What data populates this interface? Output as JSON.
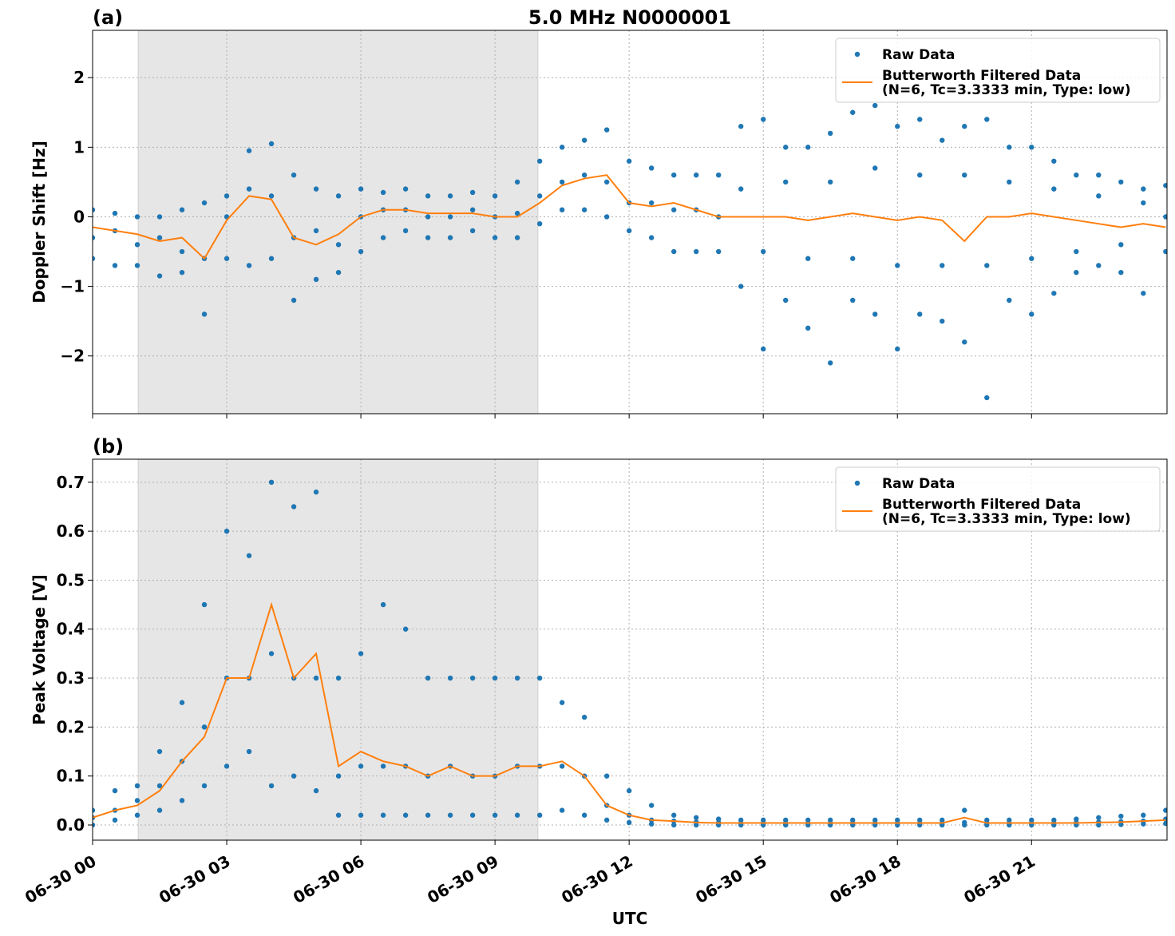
{
  "chart_data": [
    {
      "type": "scatter_line",
      "panel_label": "(a)",
      "title": "5.0 MHz N0000001",
      "ylabel": "Doppler Shift [Hz]",
      "xlim": [
        0,
        24.03
      ],
      "xticks": [
        0,
        3,
        6,
        9,
        12,
        15,
        18,
        21
      ],
      "ylim": [
        -2.83,
        2.68
      ],
      "yticks": [
        {
          "value": -2,
          "label": "−2"
        },
        {
          "value": -1,
          "label": "−1"
        },
        0,
        1,
        2
      ],
      "grid": true,
      "legend": "upper right",
      "shaded_span": [
        1.02,
        9.96
      ],
      "shade_color": "#e6e6e6",
      "series": [
        {
          "name": [
            "Raw Data"
          ],
          "kind": "points",
          "color": "#1f77b4",
          "x": [
            0,
            0.5,
            1,
            1.5,
            2,
            2.5,
            3,
            3.5,
            4,
            4.5,
            5,
            5.5,
            6,
            6.5,
            7,
            7.5,
            8,
            8.5,
            9,
            9.5,
            10,
            10.5,
            11,
            11.5,
            12,
            12.5,
            13,
            13.5,
            14,
            14.5,
            15,
            15.5,
            16,
            16.5,
            17,
            17.5,
            18,
            18.5,
            19,
            19.5,
            20,
            20.5,
            21,
            21.5,
            22,
            22.5,
            23,
            23.5,
            24
          ],
          "values": [
            [
              0.1,
              -0.6,
              -0.3
            ],
            [
              0.05,
              -0.7,
              -0.2
            ],
            [
              0.0,
              -0.7,
              -0.4
            ],
            [
              0.0,
              -0.85,
              -0.3
            ],
            [
              0.1,
              -0.8,
              -0.5
            ],
            [
              0.2,
              -1.4,
              -0.6
            ],
            [
              0.3,
              -0.6,
              0.0
            ],
            [
              0.95,
              -0.7,
              0.4
            ],
            [
              1.05,
              -0.6,
              0.3
            ],
            [
              0.6,
              -1.2,
              -0.3
            ],
            [
              0.4,
              -0.9,
              -0.2
            ],
            [
              0.3,
              -0.8,
              -0.4
            ],
            [
              0.4,
              -0.5,
              0.0
            ],
            [
              0.35,
              -0.3,
              0.1
            ],
            [
              0.4,
              -0.2,
              0.1
            ],
            [
              0.3,
              -0.3,
              0.0
            ],
            [
              0.3,
              -0.3,
              0.0
            ],
            [
              0.35,
              -0.2,
              0.1
            ],
            [
              0.3,
              -0.3,
              0.0
            ],
            [
              0.5,
              -0.3,
              0.05
            ],
            [
              0.8,
              -0.1,
              0.3
            ],
            [
              1.0,
              0.1,
              0.5
            ],
            [
              1.1,
              0.1,
              0.6
            ],
            [
              1.25,
              0.0,
              0.5
            ],
            [
              0.8,
              -0.2,
              0.2
            ],
            [
              0.7,
              -0.3,
              0.2
            ],
            [
              0.6,
              -0.5,
              0.1
            ],
            [
              0.6,
              -0.5,
              0.1
            ],
            [
              0.6,
              -0.5,
              0.0
            ],
            [
              1.3,
              -1.0,
              0.4
            ],
            [
              1.4,
              -1.9,
              -0.5
            ],
            [
              1.0,
              -1.2,
              0.5
            ],
            [
              1.0,
              -1.6,
              -0.6
            ],
            [
              1.2,
              -2.1,
              0.5
            ],
            [
              1.5,
              -1.2,
              -0.6
            ],
            [
              1.6,
              -1.4,
              0.7
            ],
            [
              1.3,
              -1.9,
              -0.7
            ],
            [
              1.4,
              -1.4,
              0.6
            ],
            [
              1.1,
              -1.5,
              -0.7
            ],
            [
              1.3,
              -1.8,
              0.6
            ],
            [
              1.4,
              -2.6,
              -0.7
            ],
            [
              1.0,
              -1.2,
              0.5
            ],
            [
              1.0,
              -1.4,
              -0.6
            ],
            [
              0.8,
              -1.1,
              0.4
            ],
            [
              0.6,
              -0.8,
              -0.5
            ],
            [
              0.6,
              -0.7,
              0.3
            ],
            [
              0.5,
              -0.8,
              -0.4
            ],
            [
              0.4,
              -1.1,
              0.2
            ],
            [
              0.45,
              -0.5,
              0.0
            ]
          ]
        },
        {
          "name": [
            "Butterworth Filtered Data",
            "(N=6, Tc=3.3333 min, Type: low)"
          ],
          "kind": "line",
          "color": "#ff7f0e",
          "x": [
            0,
            0.5,
            1,
            1.5,
            2,
            2.5,
            3,
            3.5,
            4,
            4.5,
            5,
            5.5,
            6,
            6.5,
            7,
            7.5,
            8,
            8.5,
            9,
            9.5,
            10,
            10.5,
            11,
            11.5,
            12,
            12.5,
            13,
            13.5,
            14,
            14.5,
            15,
            15.5,
            16,
            16.5,
            17,
            17.5,
            18,
            18.5,
            19,
            19.5,
            20,
            20.5,
            21,
            21.5,
            22,
            22.5,
            23,
            23.5,
            24
          ],
          "values": [
            -0.15,
            -0.2,
            -0.25,
            -0.35,
            -0.3,
            -0.6,
            -0.05,
            0.3,
            0.25,
            -0.3,
            -0.4,
            -0.25,
            0.0,
            0.1,
            0.1,
            0.05,
            0.05,
            0.05,
            0.0,
            0.0,
            0.2,
            0.45,
            0.55,
            0.6,
            0.2,
            0.15,
            0.2,
            0.1,
            0.0,
            0.0,
            0.0,
            0.0,
            -0.05,
            0.0,
            0.05,
            0.0,
            -0.05,
            0.0,
            -0.05,
            -0.35,
            0.0,
            0.0,
            0.05,
            0.0,
            -0.05,
            -0.1,
            -0.15,
            -0.1,
            -0.15
          ]
        }
      ]
    },
    {
      "type": "scatter_line",
      "panel_label": "(b)",
      "ylabel": "Peak Voltage [V]",
      "xlabel": "UTC",
      "xlim": [
        0,
        24.03
      ],
      "xticks": [
        {
          "value": 0,
          "label": "06-30 00"
        },
        {
          "value": 3,
          "label": "06-30 03"
        },
        {
          "value": 6,
          "label": "06-30 06"
        },
        {
          "value": 9,
          "label": "06-30 09"
        },
        {
          "value": 12,
          "label": "06-30 12"
        },
        {
          "value": 15,
          "label": "06-30 15"
        },
        {
          "value": 18,
          "label": "06-30 18"
        },
        {
          "value": 21,
          "label": "06-30 21"
        }
      ],
      "ylim": [
        -0.031,
        0.747
      ],
      "yticks": [
        {
          "value": 0,
          "label": "0.0"
        },
        0.1,
        0.2,
        0.3,
        0.4,
        0.5,
        0.6,
        0.7
      ],
      "grid": true,
      "legend": "upper right",
      "shaded_span": [
        1.02,
        9.96
      ],
      "shade_color": "#e6e6e6",
      "series": [
        {
          "name": [
            "Raw Data"
          ],
          "kind": "points",
          "color": "#1f77b4",
          "x": [
            0,
            0.5,
            1,
            1.5,
            2,
            2.5,
            3,
            3.5,
            4,
            4.5,
            5,
            5.5,
            6,
            6.5,
            7,
            7.5,
            8,
            8.5,
            9,
            9.5,
            10,
            10.5,
            11,
            11.5,
            12,
            12.5,
            13,
            13.5,
            14,
            14.5,
            15,
            15.5,
            16,
            16.5,
            17,
            17.5,
            18,
            18.5,
            19,
            19.5,
            20,
            20.5,
            21,
            21.5,
            22,
            22.5,
            23,
            23.5,
            24
          ],
          "values": [
            [
              0.03,
              0.0,
              0.015
            ],
            [
              0.07,
              0.01,
              0.03
            ],
            [
              0.08,
              0.02,
              0.05
            ],
            [
              0.15,
              0.03,
              0.08
            ],
            [
              0.25,
              0.05,
              0.13
            ],
            [
              0.45,
              0.08,
              0.2
            ],
            [
              0.6,
              0.12,
              0.3
            ],
            [
              0.55,
              0.15,
              0.3
            ],
            [
              0.7,
              0.08,
              0.35
            ],
            [
              0.65,
              0.1,
              0.3
            ],
            [
              0.68,
              0.07,
              0.3
            ],
            [
              0.3,
              0.02,
              0.1
            ],
            [
              0.35,
              0.02,
              0.12
            ],
            [
              0.45,
              0.02,
              0.12
            ],
            [
              0.4,
              0.02,
              0.12
            ],
            [
              0.3,
              0.02,
              0.1
            ],
            [
              0.3,
              0.02,
              0.12
            ],
            [
              0.3,
              0.02,
              0.1
            ],
            [
              0.3,
              0.02,
              0.1
            ],
            [
              0.3,
              0.02,
              0.12
            ],
            [
              0.3,
              0.02,
              0.12
            ],
            [
              0.25,
              0.03,
              0.12
            ],
            [
              0.22,
              0.02,
              0.1
            ],
            [
              0.1,
              0.01,
              0.04
            ],
            [
              0.07,
              0.005,
              0.02
            ],
            [
              0.04,
              0.002,
              0.01
            ],
            [
              0.02,
              0.0,
              0.008
            ],
            [
              0.015,
              0.0,
              0.006
            ],
            [
              0.012,
              0.0,
              0.005
            ],
            [
              0.01,
              0.0,
              0.004
            ],
            [
              0.01,
              0.0,
              0.004
            ],
            [
              0.01,
              0.0,
              0.004
            ],
            [
              0.01,
              0.0,
              0.004
            ],
            [
              0.01,
              0.0,
              0.004
            ],
            [
              0.01,
              0.0,
              0.004
            ],
            [
              0.01,
              0.0,
              0.004
            ],
            [
              0.01,
              0.0,
              0.004
            ],
            [
              0.01,
              0.0,
              0.004
            ],
            [
              0.01,
              0.0,
              0.004
            ],
            [
              0.03,
              0.0,
              0.005
            ],
            [
              0.01,
              0.0,
              0.004
            ],
            [
              0.01,
              0.0,
              0.004
            ],
            [
              0.01,
              0.0,
              0.004
            ],
            [
              0.01,
              0.0,
              0.004
            ],
            [
              0.012,
              0.0,
              0.005
            ],
            [
              0.015,
              0.0,
              0.006
            ],
            [
              0.018,
              0.001,
              0.007
            ],
            [
              0.02,
              0.002,
              0.008
            ],
            [
              0.03,
              0.003,
              0.012
            ]
          ]
        },
        {
          "name": [
            "Butterworth Filtered Data",
            "(N=6, Tc=3.3333 min, Type: low)"
          ],
          "kind": "line",
          "color": "#ff7f0e",
          "x": [
            0,
            0.5,
            1,
            1.5,
            2,
            2.5,
            3,
            3.5,
            4,
            4.5,
            5,
            5.5,
            6,
            6.5,
            7,
            7.5,
            8,
            8.5,
            9,
            9.5,
            10,
            10.5,
            11,
            11.5,
            12,
            12.5,
            13,
            13.5,
            14,
            14.5,
            15,
            15.5,
            16,
            16.5,
            17,
            17.5,
            18,
            18.5,
            19,
            19.5,
            20,
            20.5,
            21,
            21.5,
            22,
            22.5,
            23,
            23.5,
            24
          ],
          "values": [
            0.015,
            0.03,
            0.04,
            0.07,
            0.13,
            0.18,
            0.3,
            0.3,
            0.45,
            0.3,
            0.35,
            0.12,
            0.15,
            0.13,
            0.12,
            0.1,
            0.12,
            0.1,
            0.1,
            0.12,
            0.12,
            0.13,
            0.1,
            0.04,
            0.02,
            0.01,
            0.008,
            0.005,
            0.004,
            0.004,
            0.004,
            0.004,
            0.004,
            0.004,
            0.004,
            0.004,
            0.004,
            0.004,
            0.004,
            0.015,
            0.004,
            0.004,
            0.004,
            0.004,
            0.004,
            0.005,
            0.006,
            0.008,
            0.01
          ]
        }
      ]
    }
  ]
}
